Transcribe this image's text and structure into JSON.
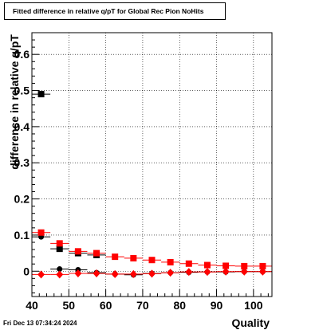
{
  "chart_data": {
    "type": "scatter",
    "title": "Fitted difference in relative q/pT for Global Rec Pion NoHits",
    "xlabel": "Quality",
    "ylabel": "difference in relative q/pT",
    "xlim": [
      40,
      105
    ],
    "ylim": [
      -0.07,
      0.66
    ],
    "xticks": [
      40,
      50,
      60,
      70,
      80,
      90,
      100
    ],
    "yticks": [
      0,
      0.1,
      0.2,
      0.3,
      0.4,
      0.5,
      0.6
    ],
    "grid": true,
    "series": [
      {
        "marker": "square",
        "color": "#000000",
        "x": [
          42.5,
          47.5,
          52.5,
          57.5
        ],
        "y": [
          0.49,
          0.062,
          0.05,
          0.045
        ]
      },
      {
        "marker": "circle",
        "color": "#000000",
        "x": [
          42.5,
          47.5,
          52.5,
          57.5,
          62.5,
          67.5,
          72.5,
          77.5,
          82.5,
          87.5,
          92.5,
          97.5,
          102.5
        ],
        "y": [
          0.095,
          0.006,
          0.004,
          -0.004,
          -0.008,
          -0.01,
          -0.006,
          -0.004,
          -0.003,
          -0.002,
          -0.002,
          -0.001,
          -0.001
        ]
      },
      {
        "marker": "square",
        "color": "#ff0000",
        "x": [
          42.5,
          47.5,
          52.5,
          57.5,
          62.5,
          67.5,
          72.5,
          77.5,
          82.5,
          87.5,
          92.5,
          97.5,
          102.5
        ],
        "y": [
          0.107,
          0.077,
          0.055,
          0.05,
          0.04,
          0.036,
          0.031,
          0.025,
          0.021,
          0.017,
          0.015,
          0.014,
          0.014
        ]
      },
      {
        "marker": "diamond",
        "color": "#ff0000",
        "x": [
          42.5,
          47.5,
          52.5,
          57.5,
          62.5,
          67.5,
          72.5,
          77.5,
          82.5,
          87.5,
          92.5,
          97.5,
          102.5
        ],
        "y": [
          -0.009,
          -0.009,
          -0.006,
          -0.006,
          -0.008,
          -0.008,
          -0.007,
          -0.004,
          -0.002,
          -0.002,
          -0.001,
          -0.001,
          -0.001
        ]
      }
    ]
  },
  "datestamp": "Fri Dec 13 07:34:24 2024"
}
